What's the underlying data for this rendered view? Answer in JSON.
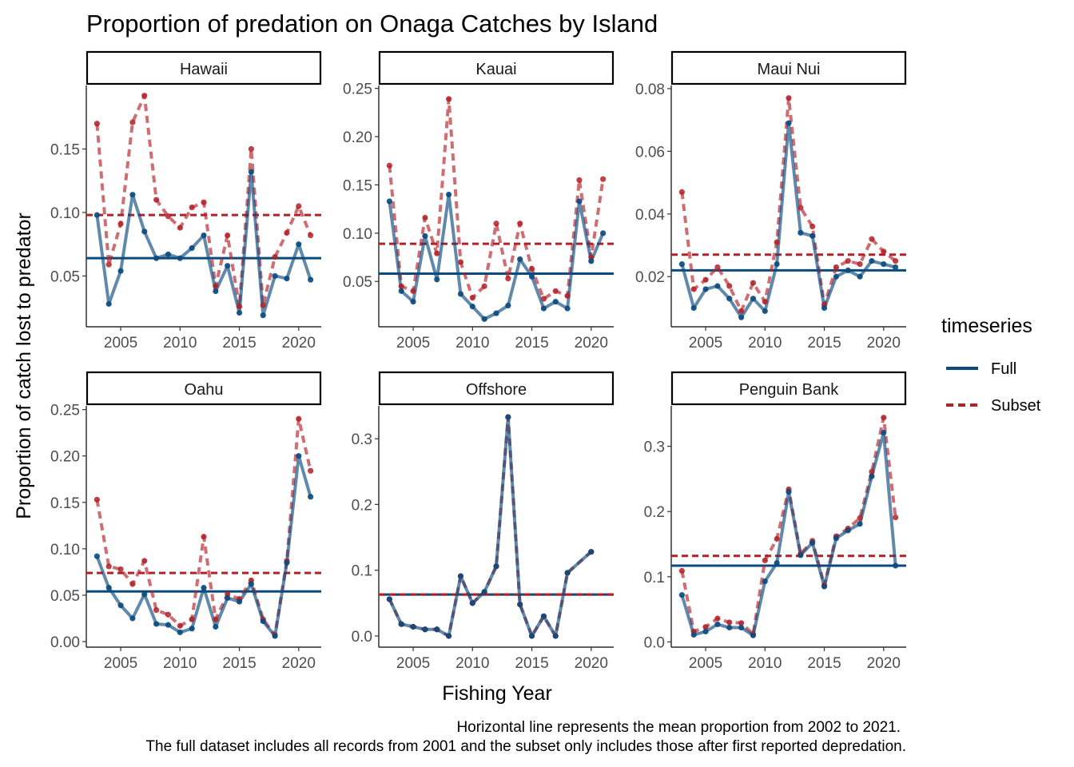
{
  "chart_data": {
    "type": "line",
    "title": "Proportion of predation on Onaga Catches by Island",
    "xlabel": "Fishing Year",
    "ylabel": "Proportion of catch lost to predator",
    "caption": [
      "Horizontal line represents the mean proportion from 2002 to 2021.",
      "The full dataset includes all records from 2001 and the subset only includes those after first reported depredation."
    ],
    "legend": {
      "title": "timeseries",
      "position": "right",
      "entries": [
        {
          "name": "Full",
          "color": "#0b4a7e",
          "style": "solid"
        },
        {
          "name": "Subset",
          "color": "#b32027",
          "style": "dashed"
        }
      ]
    },
    "colors": {
      "full": "#0b4a7e",
      "subset": "#b32027"
    },
    "grid": false,
    "panels": [
      {
        "name": "Hawaii",
        "xlim": [
          2002.1,
          2021.9
        ],
        "ylim": [
          0.01,
          0.2
        ],
        "xticks": [
          2005,
          2010,
          2015,
          2020
        ],
        "yticks": [
          0.05,
          0.1,
          0.15
        ],
        "ytick_labels": [
          "0.05",
          "0.10",
          "0.15"
        ],
        "mean_full": 0.064,
        "mean_subset": 0.098,
        "full": {
          "x": [
            2003,
            2004,
            2005,
            2006,
            2007,
            2008,
            2009,
            2010,
            2011,
            2012,
            2013,
            2014,
            2015,
            2016,
            2017,
            2018,
            2019,
            2020,
            2021
          ],
          "y": [
            0.098,
            0.028,
            0.054,
            0.114,
            0.085,
            0.064,
            0.067,
            0.064,
            0.072,
            0.082,
            0.038,
            0.058,
            0.021,
            0.132,
            0.019,
            0.05,
            0.048,
            0.075,
            0.047
          ]
        },
        "subset": {
          "x": [
            2003,
            2004,
            2005,
            2006,
            2007,
            2008,
            2009,
            2010,
            2011,
            2012,
            2013,
            2014,
            2015,
            2016,
            2017,
            2018,
            2019,
            2020,
            2021
          ],
          "y": [
            0.17,
            0.059,
            0.091,
            0.171,
            0.192,
            0.11,
            0.097,
            0.088,
            0.104,
            0.108,
            0.042,
            0.082,
            0.026,
            0.15,
            0.027,
            0.065,
            0.084,
            0.105,
            0.082
          ]
        }
      },
      {
        "name": "Kauai",
        "xlim": [
          2002.1,
          2021.9
        ],
        "ylim": [
          0.003,
          0.253
        ],
        "xticks": [
          2005,
          2010,
          2015,
          2020
        ],
        "yticks": [
          0.05,
          0.1,
          0.15,
          0.2,
          0.25
        ],
        "ytick_labels": [
          "0.05",
          "0.10",
          "0.15",
          "0.20",
          "0.25"
        ],
        "mean_full": 0.058,
        "mean_subset": 0.089,
        "full": {
          "x": [
            2003,
            2004,
            2005,
            2006,
            2007,
            2008,
            2009,
            2010,
            2011,
            2012,
            2013,
            2014,
            2015,
            2016,
            2017,
            2018,
            2019,
            2020,
            2021
          ],
          "y": [
            0.133,
            0.04,
            0.029,
            0.097,
            0.052,
            0.14,
            0.037,
            0.024,
            0.011,
            0.017,
            0.025,
            0.073,
            0.055,
            0.022,
            0.029,
            0.022,
            0.133,
            0.071,
            0.1
          ]
        },
        "subset": {
          "x": [
            2003,
            2004,
            2005,
            2006,
            2007,
            2008,
            2009,
            2010,
            2011,
            2012,
            2013,
            2014,
            2015,
            2016,
            2017,
            2018,
            2019,
            2020,
            2021
          ],
          "y": [
            0.17,
            0.045,
            0.04,
            0.116,
            0.079,
            0.239,
            0.07,
            0.033,
            0.045,
            0.11,
            0.053,
            0.11,
            0.063,
            0.032,
            0.04,
            0.035,
            0.155,
            0.075,
            0.156
          ]
        }
      },
      {
        "name": "Maui Nui",
        "xlim": [
          2002.1,
          2021.9
        ],
        "ylim": [
          0.004,
          0.081
        ],
        "xticks": [
          2005,
          2010,
          2015,
          2020
        ],
        "yticks": [
          0.02,
          0.04,
          0.06,
          0.08
        ],
        "ytick_labels": [
          "0.02",
          "0.04",
          "0.06",
          "0.08"
        ],
        "mean_full": 0.022,
        "mean_subset": 0.027,
        "full": {
          "x": [
            2003,
            2004,
            2005,
            2006,
            2007,
            2008,
            2009,
            2010,
            2011,
            2012,
            2013,
            2014,
            2015,
            2016,
            2017,
            2018,
            2019,
            2020,
            2021
          ],
          "y": [
            0.024,
            0.01,
            0.016,
            0.017,
            0.013,
            0.007,
            0.013,
            0.009,
            0.024,
            0.069,
            0.034,
            0.033,
            0.01,
            0.02,
            0.022,
            0.02,
            0.025,
            0.024,
            0.023
          ]
        },
        "subset": {
          "x": [
            2003,
            2004,
            2005,
            2006,
            2007,
            2008,
            2009,
            2010,
            2011,
            2012,
            2013,
            2014,
            2015,
            2016,
            2017,
            2018,
            2019,
            2020,
            2021
          ],
          "y": [
            0.047,
            0.016,
            0.019,
            0.023,
            0.017,
            0.009,
            0.018,
            0.012,
            0.031,
            0.077,
            0.042,
            0.036,
            0.011,
            0.023,
            0.025,
            0.024,
            0.032,
            0.028,
            0.025
          ]
        }
      },
      {
        "name": "Oahu",
        "xlim": [
          2002.1,
          2021.9
        ],
        "ylim": [
          -0.006,
          0.254
        ],
        "xticks": [
          2005,
          2010,
          2015,
          2020
        ],
        "yticks": [
          0,
          0.05,
          0.1,
          0.15,
          0.2,
          0.25
        ],
        "ytick_labels": [
          "0.00",
          "0.05",
          "0.10",
          "0.15",
          "0.20",
          "0.25"
        ],
        "mean_full": 0.054,
        "mean_subset": 0.074,
        "full": {
          "x": [
            2003,
            2004,
            2005,
            2006,
            2007,
            2008,
            2009,
            2010,
            2011,
            2012,
            2013,
            2014,
            2015,
            2016,
            2017,
            2018,
            2019,
            2020,
            2021
          ],
          "y": [
            0.092,
            0.058,
            0.039,
            0.025,
            0.051,
            0.019,
            0.018,
            0.01,
            0.014,
            0.058,
            0.016,
            0.047,
            0.043,
            0.062,
            0.022,
            0.006,
            0.085,
            0.2,
            0.156
          ]
        },
        "subset": {
          "x": [
            2003,
            2004,
            2005,
            2006,
            2007,
            2008,
            2009,
            2010,
            2011,
            2012,
            2013,
            2014,
            2015,
            2016,
            2017,
            2018,
            2019,
            2020,
            2021
          ],
          "y": [
            0.153,
            0.081,
            0.078,
            0.062,
            0.087,
            0.034,
            0.029,
            0.017,
            0.024,
            0.113,
            0.024,
            0.051,
            0.046,
            0.066,
            0.024,
            0.007,
            0.087,
            0.24,
            0.184
          ]
        }
      },
      {
        "name": "Offshore",
        "xlim": [
          2002.1,
          2021.9
        ],
        "ylim": [
          -0.017,
          0.35
        ],
        "xticks": [
          2005,
          2010,
          2015,
          2020
        ],
        "yticks": [
          0,
          0.1,
          0.2,
          0.3
        ],
        "ytick_labels": [
          "0.0",
          "0.1",
          "0.2",
          "0.3"
        ],
        "mean_full": 0.063,
        "mean_subset": 0.063,
        "full": {
          "x": [
            2003,
            2004,
            2005,
            2006,
            2007,
            2008,
            2009,
            2010,
            2011,
            2012,
            2013,
            2014,
            2015,
            2016,
            2017,
            2018,
            2020
          ],
          "y": [
            0.056,
            0.018,
            0.014,
            0.01,
            0.01,
            0.0,
            0.091,
            0.05,
            0.067,
            0.106,
            0.333,
            0.048,
            0.0,
            0.03,
            0.0,
            0.096,
            0.128
          ]
        },
        "subset": {
          "x": [
            2003,
            2004,
            2005,
            2006,
            2007,
            2008,
            2009,
            2010,
            2011,
            2012,
            2013,
            2014,
            2015,
            2016,
            2017,
            2018,
            2020
          ],
          "y": [
            0.056,
            0.018,
            0.014,
            0.01,
            0.01,
            0.0,
            0.091,
            0.05,
            0.067,
            0.106,
            0.333,
            0.048,
            0.0,
            0.03,
            0.0,
            0.096,
            0.128
          ]
        }
      },
      {
        "name": "Penguin Bank",
        "xlim": [
          2002.1,
          2021.9
        ],
        "ylim": [
          -0.008,
          0.362
        ],
        "xticks": [
          2005,
          2010,
          2015,
          2020
        ],
        "yticks": [
          0,
          0.1,
          0.2,
          0.3
        ],
        "ytick_labels": [
          "0.0",
          "0.1",
          "0.2",
          "0.3"
        ],
        "mean_full": 0.117,
        "mean_subset": 0.132,
        "full": {
          "x": [
            2003,
            2004,
            2005,
            2006,
            2007,
            2008,
            2009,
            2010,
            2011,
            2012,
            2013,
            2014,
            2015,
            2016,
            2017,
            2018,
            2019,
            2020,
            2021
          ],
          "y": [
            0.072,
            0.011,
            0.016,
            0.027,
            0.022,
            0.022,
            0.01,
            0.093,
            0.121,
            0.23,
            0.133,
            0.152,
            0.085,
            0.159,
            0.171,
            0.181,
            0.254,
            0.321,
            0.117
          ]
        },
        "subset": {
          "x": [
            2003,
            2004,
            2005,
            2006,
            2007,
            2008,
            2009,
            2010,
            2011,
            2012,
            2013,
            2014,
            2015,
            2016,
            2017,
            2018,
            2019,
            2020,
            2021
          ],
          "y": [
            0.109,
            0.016,
            0.023,
            0.036,
            0.03,
            0.029,
            0.012,
            0.125,
            0.158,
            0.234,
            0.135,
            0.155,
            0.087,
            0.162,
            0.174,
            0.19,
            0.261,
            0.344,
            0.191
          ]
        }
      }
    ]
  }
}
